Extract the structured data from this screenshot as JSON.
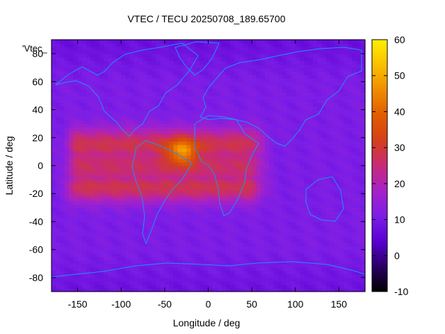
{
  "chart_data": {
    "type": "heatmap",
    "title": "VTEC / TECU 20250708_189.65700",
    "xlabel": "Longitude / deg",
    "ylabel": "Latitude / deg",
    "series_label": "'Vtec_",
    "xlim": [
      -180,
      180
    ],
    "ylim": [
      -90,
      90
    ],
    "x_ticks": [
      -150,
      -100,
      -50,
      0,
      50,
      100,
      150
    ],
    "y_ticks": [
      -80,
      -60,
      -40,
      -20,
      0,
      20,
      40,
      60,
      80
    ],
    "colorbar": {
      "range": [
        -10,
        60
      ],
      "ticks": [
        -10,
        0,
        10,
        20,
        30,
        40,
        50,
        60
      ],
      "palette": [
        "#000000",
        "#2a0064",
        "#5a00d4",
        "#7c1ee6",
        "#a622c8",
        "#c82a78",
        "#d4401a",
        "#e05c00",
        "#f08c00",
        "#fac000",
        "#ffee00"
      ]
    },
    "grid_resolution": {
      "dlon": 5,
      "dlat": 2.5
    },
    "background_tecu": 11,
    "enhancement": {
      "crest_lats": [
        15,
        -15
      ],
      "crest_peak_tecu": 28,
      "longitude_range": [
        -150,
        45
      ],
      "hot_spot": {
        "lon": -30,
        "lat": 10,
        "peak_tecu": 50
      }
    },
    "coastline_color": "#1e90ff"
  }
}
